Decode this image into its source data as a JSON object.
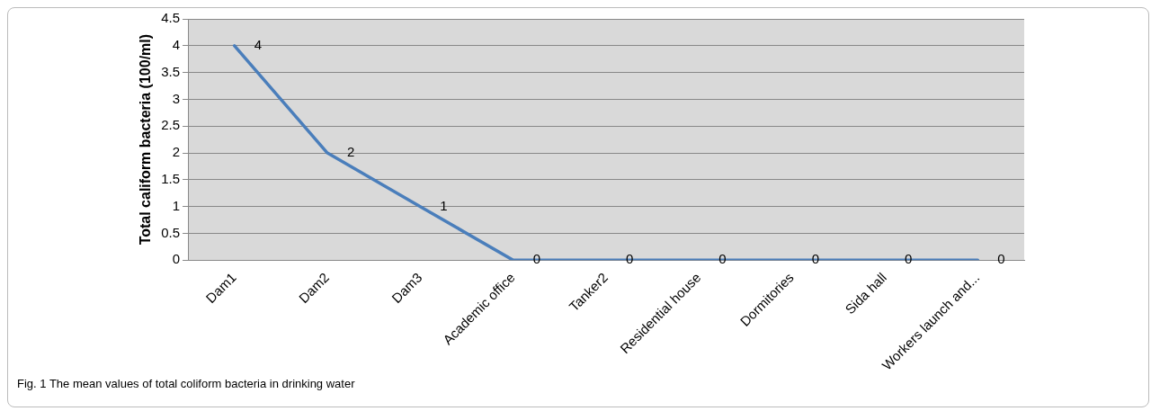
{
  "chart_data": {
    "type": "line",
    "categories": [
      "Dam1",
      "Dam2",
      "Dam3",
      "Academic office",
      "Tanker2",
      "Residential house",
      "Dormitories",
      "Sida hall",
      "Workers launch and..."
    ],
    "series": [
      {
        "color": "#4a7ebb",
        "values": [
          4,
          2,
          1,
          0,
          0,
          0,
          0,
          0,
          0
        ]
      }
    ],
    "ylabel": "Total caliform bacteria (100/ml)",
    "ylim": [
      0,
      4.5
    ],
    "yticks": [
      0,
      0.5,
      1,
      1.5,
      2,
      2.5,
      3,
      3.5,
      4,
      4.5
    ],
    "grid": "y",
    "legend": false,
    "marker": "none",
    "line_style": "solid",
    "data_labels": true,
    "annotations": [
      "Fig. 1  The mean values of total coliform bacteria in drinking water"
    ]
  }
}
